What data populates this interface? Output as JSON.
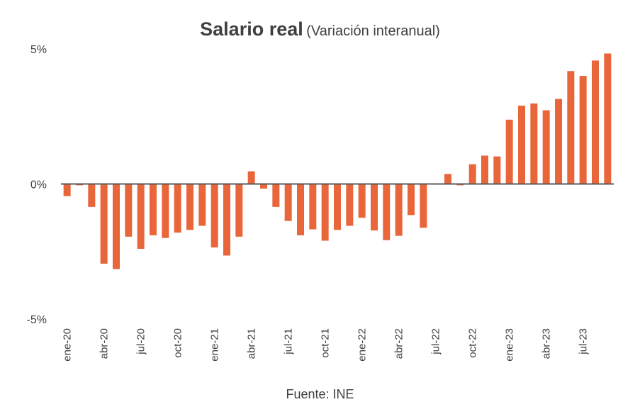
{
  "chart_data": {
    "type": "bar",
    "title": "Salario real",
    "subtitle": "(Variación interanual)",
    "source": "Fuente: INE",
    "xlabel": "",
    "ylabel": "",
    "ylim": [
      -5,
      5
    ],
    "yticks": [
      {
        "value": 5,
        "label": "5%"
      },
      {
        "value": 0,
        "label": "0%"
      },
      {
        "value": -5,
        "label": "-5%"
      }
    ],
    "grid": false,
    "bar_color": "#E8663A",
    "axis_color": "#595959",
    "categories": [
      "ene-20",
      "feb-20",
      "mar-20",
      "abr-20",
      "may-20",
      "jun-20",
      "jul-20",
      "ago-20",
      "sep-20",
      "oct-20",
      "nov-20",
      "dic-20",
      "ene-21",
      "feb-21",
      "mar-21",
      "abr-21",
      "may-21",
      "jun-21",
      "jul-21",
      "ago-21",
      "sep-21",
      "oct-21",
      "nov-21",
      "dic-21",
      "ene-22",
      "feb-22",
      "mar-22",
      "abr-22",
      "may-22",
      "jun-22",
      "jul-22",
      "ago-22",
      "sep-22",
      "oct-22",
      "nov-22",
      "dic-22",
      "ene-23",
      "feb-23",
      "mar-23",
      "abr-23",
      "may-23",
      "jun-23",
      "jul-23",
      "ago-23",
      "sep-23"
    ],
    "tick_labels": [
      "ene-20",
      "abr-20",
      "jul-20",
      "oct-20",
      "ene-21",
      "abr-21",
      "jul-21",
      "oct-21",
      "ene-22",
      "abr-22",
      "jul-22",
      "oct-22",
      "ene-23",
      "abr-23",
      "jul-23"
    ],
    "values": [
      -0.45,
      -0.05,
      -0.85,
      -2.95,
      -3.15,
      -1.95,
      -2.4,
      -1.9,
      -2.0,
      -1.8,
      -1.7,
      -1.55,
      -2.35,
      -2.65,
      -1.95,
      0.47,
      -0.17,
      -0.85,
      -1.37,
      -1.9,
      -1.68,
      -2.1,
      -1.7,
      -1.55,
      -1.25,
      -1.72,
      -2.08,
      -1.92,
      -1.15,
      -1.62,
      0,
      0.37,
      -0.05,
      0.73,
      1.05,
      1.02,
      2.38,
      2.9,
      2.98,
      2.73,
      3.15,
      4.18,
      4.0,
      4.57,
      4.83
    ]
  }
}
